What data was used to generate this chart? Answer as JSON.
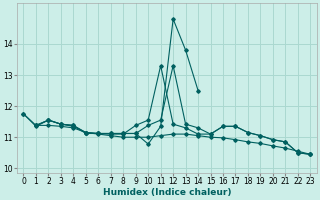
{
  "xlabel": "Humidex (Indice chaleur)",
  "bg_color": "#cceee8",
  "grid_color": "#aad8d0",
  "line_color": "#006060",
  "ylim": [
    9.85,
    15.3
  ],
  "xlim": [
    -0.5,
    23.5
  ],
  "yticks": [
    10,
    11,
    12,
    13,
    14
  ],
  "xticks": [
    0,
    1,
    2,
    3,
    4,
    5,
    6,
    7,
    8,
    9,
    10,
    11,
    12,
    13,
    14,
    15,
    16,
    17,
    18,
    19,
    20,
    21,
    22,
    23
  ],
  "line1_x": [
    0,
    1,
    2,
    3,
    4,
    5,
    6,
    7,
    8,
    9,
    10,
    11,
    12,
    13,
    14
  ],
  "line1_y": [
    11.75,
    11.35,
    11.55,
    11.42,
    11.38,
    11.12,
    11.12,
    11.12,
    11.12,
    11.12,
    10.78,
    11.35,
    14.8,
    13.8,
    12.5
  ],
  "line2_x": [
    1,
    2,
    3,
    4,
    5,
    6,
    7,
    8,
    9,
    10,
    11,
    12,
    13,
    14,
    15,
    16,
    17,
    18,
    19,
    20,
    21,
    22,
    23
  ],
  "line2_y": [
    11.38,
    11.55,
    11.42,
    11.35,
    11.15,
    11.12,
    11.1,
    11.1,
    11.38,
    11.55,
    13.3,
    11.42,
    11.3,
    11.1,
    11.1,
    11.35,
    11.35,
    11.15,
    11.05,
    10.92,
    10.85,
    10.5,
    10.45
  ],
  "line3_x": [
    1,
    2,
    3,
    4,
    5,
    6,
    7,
    8,
    9,
    10,
    11,
    12,
    13,
    14,
    15,
    16,
    17,
    18,
    19,
    20,
    21,
    22,
    23
  ],
  "line3_y": [
    11.38,
    11.38,
    11.35,
    11.3,
    11.15,
    11.1,
    11.05,
    11.0,
    11.0,
    11.0,
    11.05,
    11.1,
    11.1,
    11.05,
    11.0,
    10.98,
    10.92,
    10.85,
    10.8,
    10.72,
    10.65,
    10.55,
    10.45
  ],
  "line4_x": [
    0,
    1,
    2,
    3,
    4,
    5,
    6,
    7,
    8,
    9,
    10,
    11,
    12,
    13,
    14,
    15,
    16,
    17,
    18,
    19,
    20,
    21,
    22,
    23
  ],
  "line4_y": [
    11.75,
    11.38,
    11.55,
    11.42,
    11.38,
    11.15,
    11.12,
    11.12,
    11.12,
    11.12,
    11.38,
    11.55,
    13.3,
    11.42,
    11.3,
    11.1,
    11.35,
    11.35,
    11.15,
    11.05,
    10.92,
    10.85,
    10.5,
    10.45
  ]
}
